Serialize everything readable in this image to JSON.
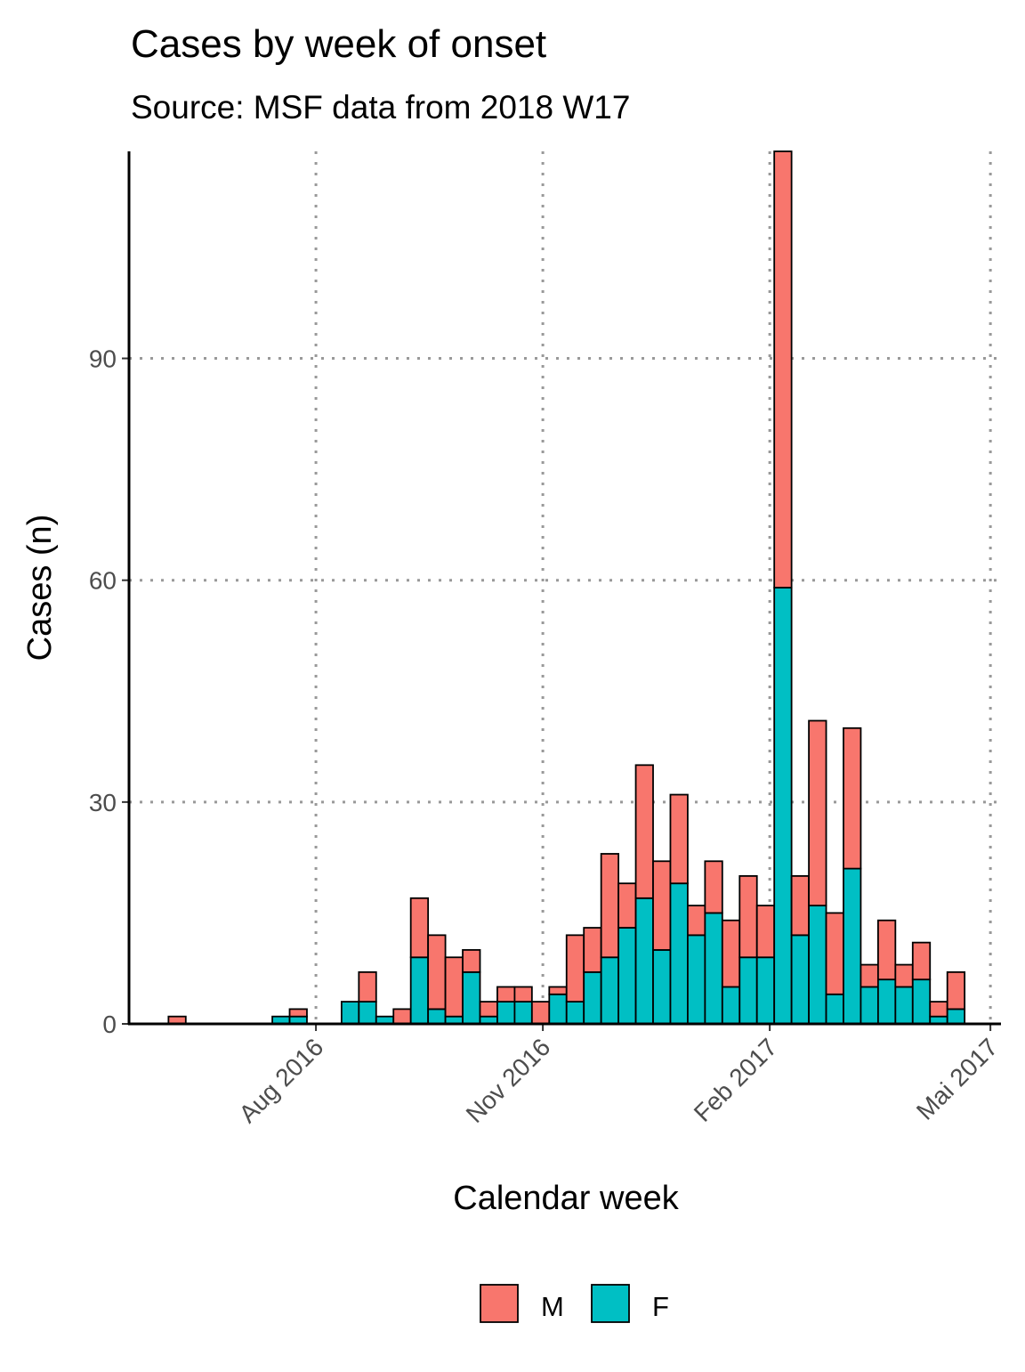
{
  "chart_data": {
    "type": "bar",
    "stacked": true,
    "title": "Cases by week of onset",
    "subtitle": "Source: MSF data from 2018 W17",
    "x_label": "Calendar week",
    "y_label": "Cases (n)",
    "categories": [
      null,
      null,
      null,
      null,
      null,
      null,
      null,
      null,
      null,
      null,
      null,
      null,
      null,
      null,
      null,
      null,
      null,
      null,
      null,
      null,
      null,
      null,
      null,
      null,
      null,
      null,
      null,
      null,
      null,
      null,
      null,
      null,
      null,
      null,
      null,
      null,
      null,
      null,
      null,
      null,
      null,
      null,
      null,
      null,
      null,
      null
    ],
    "series": [
      {
        "name": "M",
        "color": "#F8766D",
        "values": [
          1,
          0,
          0,
          0,
          0,
          0,
          0,
          1,
          0,
          0,
          0,
          4,
          0,
          2,
          8,
          10,
          8,
          3,
          2,
          2,
          2,
          3,
          1,
          9,
          6,
          14,
          6,
          18,
          12,
          12,
          4,
          7,
          9,
          11,
          7,
          59,
          8,
          25,
          11,
          19,
          3,
          8,
          3,
          5,
          2,
          5
        ]
      },
      {
        "name": "F",
        "color": "#00BFC4",
        "values": [
          0,
          0,
          0,
          0,
          0,
          0,
          1,
          1,
          0,
          0,
          3,
          3,
          1,
          0,
          9,
          2,
          1,
          7,
          1,
          3,
          3,
          0,
          4,
          3,
          7,
          9,
          13,
          17,
          10,
          19,
          12,
          15,
          5,
          9,
          9,
          59,
          12,
          16,
          4,
          21,
          5,
          6,
          5,
          6,
          1,
          2
        ]
      }
    ],
    "xlim": [
      -2.78,
      47.6
    ],
    "xticks": [
      {
        "value": 8.02,
        "label": "Aug 2016"
      },
      {
        "value": 21.13,
        "label": "Nov 2016"
      },
      {
        "value": 34.24,
        "label": "Feb 2017"
      },
      {
        "value": 46.99,
        "label": "Mai 2017"
      }
    ],
    "ylim": [
      0,
      118
    ],
    "yticks": [
      0,
      30,
      60,
      90
    ],
    "grid": true,
    "legend": "bottom"
  }
}
